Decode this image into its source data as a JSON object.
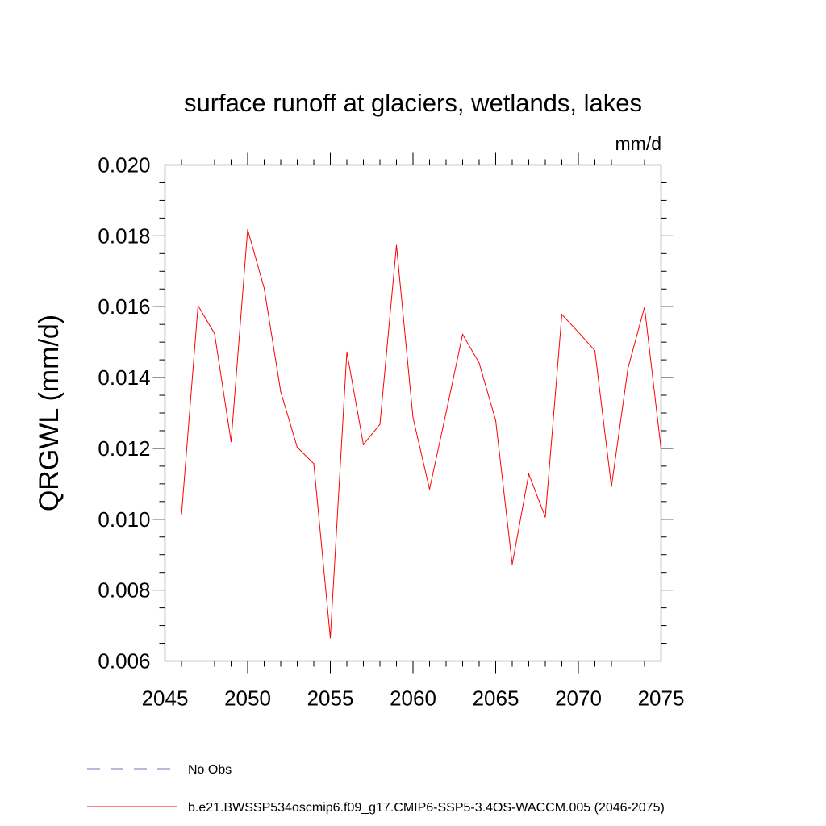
{
  "chart_data": {
    "type": "line",
    "title": "surface runoff at glaciers, wetlands, lakes",
    "units": "mm/d",
    "ylabel": "QRGWL  (mm/d)",
    "xlabel": "",
    "xlim": [
      2045,
      2075
    ],
    "ylim": [
      0.006,
      0.02
    ],
    "xticks": [
      "2045",
      "2050",
      "2055",
      "2060",
      "2065",
      "2070",
      "2075"
    ],
    "yticks": [
      "0.006",
      "0.008",
      "0.010",
      "0.012",
      "0.014",
      "0.016",
      "0.018",
      "0.020"
    ],
    "grid": false,
    "legend_position": "bottom-left",
    "series": [
      {
        "name": "b.e21.BWSSP534oscmip6.f09_g17.CMIP6-SSP5-3.4OS-WACCM.005 (2046-2075)",
        "color": "#ff0000",
        "style": "solid",
        "x": [
          2046,
          2047,
          2048,
          2049,
          2050,
          2051,
          2052,
          2053,
          2054,
          2055,
          2056,
          2057,
          2058,
          2059,
          2060,
          2061,
          2062,
          2063,
          2064,
          2065,
          2066,
          2067,
          2068,
          2069,
          2070,
          2071,
          2072,
          2073,
          2074,
          2075
        ],
        "values": [
          0.01012,
          0.01603,
          0.01524,
          0.01219,
          0.01818,
          0.01652,
          0.0136,
          0.01203,
          0.01157,
          0.00665,
          0.01472,
          0.01211,
          0.01268,
          0.01773,
          0.01287,
          0.01085,
          0.01301,
          0.01522,
          0.01441,
          0.01279,
          0.00873,
          0.01128,
          0.01006,
          0.01578,
          0.01528,
          0.01476,
          0.01092,
          0.01426,
          0.01599,
          0.01199
        ]
      }
    ],
    "legend": [
      {
        "label": "No Obs",
        "color": "#7a6fb8",
        "style": "dashed"
      },
      {
        "label": "b.e21.BWSSP534oscmip6.f09_g17.CMIP6-SSP5-3.4OS-WACCM.005 (2046-2075)",
        "color": "#ff0000",
        "style": "solid"
      }
    ]
  }
}
